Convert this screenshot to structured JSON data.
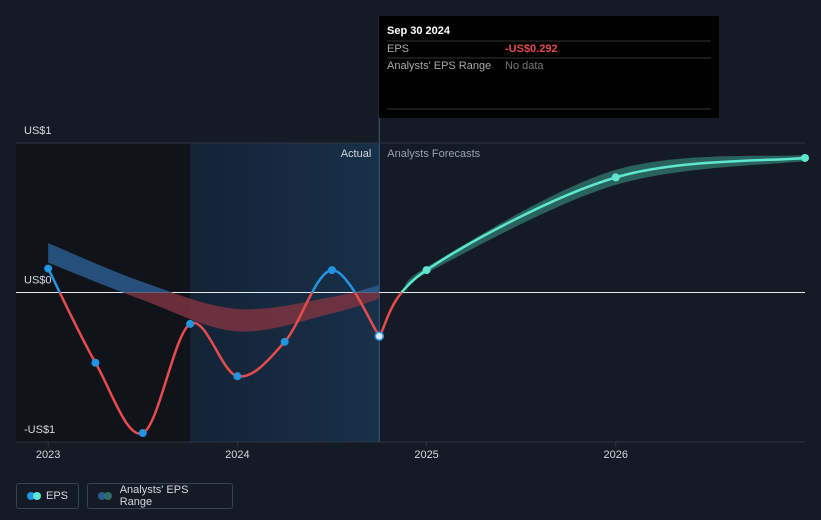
{
  "chart_data": {
    "type": "line",
    "title": null,
    "x": [
      2023.0,
      2023.25,
      2023.5,
      2023.75,
      2024.0,
      2024.25,
      2024.5,
      2024.75,
      2025.0,
      2026.0,
      2027.0
    ],
    "series": [
      {
        "name": "EPS",
        "color": "#2394df",
        "negative_color": "#e64c4c",
        "forecast_color": "#5ee6d1",
        "values": [
          0.16,
          -0.47,
          -0.94,
          -0.21,
          -0.56,
          -0.33,
          0.15,
          -0.292,
          0.15,
          0.77,
          0.9
        ]
      }
    ],
    "forecast_from_index": 7,
    "range_name": "Analysts' EPS Range",
    "ranges": [
      {
        "x": [
          2023.0,
          2023.5,
          2024.0,
          2024.5,
          2024.75
        ],
        "high": [
          0.33,
          0.07,
          -0.11,
          -0.03,
          0.05
        ],
        "low": [
          0.2,
          -0.05,
          -0.26,
          -0.14,
          -0.04
        ]
      },
      {
        "x": [
          2024.9,
          2025.0,
          2026.0,
          2027.0
        ],
        "high": [
          0.0,
          0.17,
          0.82,
          0.92
        ],
        "low": [
          0.0,
          0.13,
          0.72,
          0.88
        ]
      }
    ],
    "xlim": [
      2022.83,
      2027.0
    ],
    "xticks": [
      2023,
      2024,
      2025,
      2026
    ],
    "ylim": [
      -1,
      1
    ],
    "yticks": [
      {
        "value": -1,
        "label": "-US$1"
      },
      {
        "value": 0,
        "label": "US$0"
      },
      {
        "value": 1,
        "label": "US$1"
      }
    ],
    "actual_label": "Actual",
    "forecast_label": "Analysts Forecasts",
    "tooltip": {
      "date": "Sep 30 2024",
      "rows": [
        [
          "EPS",
          "-US$0.292"
        ],
        [
          "Analysts' EPS Range",
          "No data"
        ]
      ]
    }
  }
}
